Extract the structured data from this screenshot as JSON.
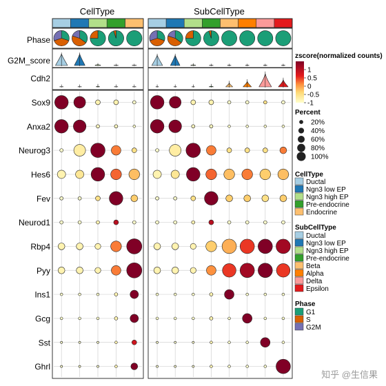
{
  "chart_data": {
    "type": "dotplot",
    "panels": [
      {
        "title": "CellType",
        "columns": [
          "Ductal",
          "Ngn3 low EP",
          "Ngn3 high EP",
          "Pre-endocrine",
          "Endocrine"
        ]
      },
      {
        "title": "SubCellType",
        "columns": [
          "Ductal",
          "Ngn3 low EP",
          "Ngn3 high EP",
          "Pre-endocrine",
          "Beta",
          "Alpha",
          "Delta",
          "Epsilon"
        ]
      }
    ],
    "track_labels": [
      "Phase",
      "G2M_score",
      "Cdh2"
    ],
    "genes": [
      "Sox9",
      "Anxa2",
      "Neurog3",
      "Hes6",
      "Fev",
      "Neurod1",
      "Rbp4",
      "Pyy",
      "Ins1",
      "Gcg",
      "Sst",
      "Ghrl"
    ],
    "dot_panel_1": {
      "percent": [
        [
          80,
          60,
          10,
          10,
          5
        ],
        [
          80,
          70,
          5,
          5,
          3
        ],
        [
          5,
          60,
          90,
          40,
          10
        ],
        [
          30,
          30,
          80,
          50,
          50
        ],
        [
          5,
          5,
          10,
          80,
          20
        ],
        [
          5,
          5,
          5,
          10,
          5
        ],
        [
          20,
          20,
          15,
          50,
          100
        ],
        [
          20,
          20,
          15,
          40,
          100
        ],
        [
          3,
          3,
          3,
          5,
          30
        ],
        [
          3,
          3,
          3,
          5,
          30
        ],
        [
          2,
          2,
          2,
          3,
          10
        ],
        [
          2,
          2,
          2,
          3,
          20
        ]
      ],
      "zscore": [
        [
          1.5,
          1.5,
          -0.8,
          -0.8,
          -1
        ],
        [
          1.5,
          1.5,
          -0.9,
          -0.9,
          -1
        ],
        [
          -1,
          -0.7,
          1.5,
          0.2,
          -0.5
        ],
        [
          -0.8,
          -0.6,
          1.5,
          0.3,
          -0.2
        ],
        [
          -1,
          -1,
          -0.5,
          1.5,
          -0.3
        ],
        [
          -1,
          -1,
          -0.8,
          1,
          -1
        ],
        [
          -0.8,
          -0.8,
          -0.8,
          0.2,
          1.5
        ],
        [
          -0.8,
          -0.8,
          -0.8,
          0.2,
          1.5
        ],
        [
          -1,
          -1,
          -1,
          -0.8,
          1.5
        ],
        [
          -1,
          -1,
          -1,
          -0.8,
          1.5
        ],
        [
          -1,
          -1,
          -1,
          -0.8,
          0.8
        ],
        [
          -1,
          -1,
          -1,
          -0.8,
          1.5
        ]
      ]
    },
    "dot_panel_2": {
      "percent": [
        [
          80,
          60,
          10,
          10,
          5,
          5,
          5,
          5
        ],
        [
          80,
          70,
          5,
          5,
          3,
          3,
          3,
          3
        ],
        [
          5,
          60,
          90,
          40,
          10,
          10,
          10,
          20
        ],
        [
          30,
          30,
          80,
          50,
          50,
          50,
          50,
          50
        ],
        [
          5,
          5,
          10,
          80,
          20,
          20,
          20,
          20
        ],
        [
          5,
          5,
          5,
          10,
          5,
          5,
          5,
          5
        ],
        [
          20,
          20,
          15,
          50,
          90,
          90,
          90,
          90
        ],
        [
          20,
          20,
          15,
          40,
          80,
          90,
          90,
          80
        ],
        [
          3,
          3,
          3,
          5,
          40,
          3,
          3,
          3
        ],
        [
          3,
          3,
          3,
          5,
          3,
          40,
          3,
          3
        ],
        [
          2,
          2,
          2,
          3,
          3,
          3,
          40,
          3
        ],
        [
          2,
          2,
          2,
          3,
          3,
          3,
          3,
          90
        ]
      ],
      "zscore": [
        [
          1.5,
          1.5,
          -0.8,
          -0.8,
          -1,
          -1,
          -0.5,
          -1
        ],
        [
          1.5,
          1.5,
          -0.9,
          -0.9,
          -1,
          -1,
          -1,
          -1
        ],
        [
          -1,
          -0.7,
          1.5,
          0.2,
          -0.5,
          -0.5,
          -0.5,
          0.2
        ],
        [
          -0.8,
          -0.6,
          1.5,
          0.3,
          -0.2,
          0.2,
          -0.3,
          -0.2
        ],
        [
          -1,
          -1,
          -0.5,
          1.5,
          -0.3,
          -0.3,
          -0.5,
          -0.3
        ],
        [
          -1,
          -1,
          -0.8,
          1,
          -1,
          -1,
          -1,
          -1
        ],
        [
          -0.8,
          -0.8,
          -0.8,
          -0.3,
          -0.1,
          0.5,
          1.5,
          1.2
        ],
        [
          -0.8,
          -0.8,
          -0.8,
          0.1,
          0.5,
          1.2,
          1.5,
          0.5
        ],
        [
          -1,
          -1,
          -1,
          -0.8,
          1.5,
          -1,
          -1,
          -1
        ],
        [
          -1,
          -1,
          -1,
          -0.8,
          -1,
          1.5,
          -1,
          -1
        ],
        [
          -1,
          -1,
          -1,
          -0.8,
          -1,
          -1,
          1.5,
          -1
        ],
        [
          -1,
          -1,
          -1,
          -0.8,
          -1,
          -1,
          -1,
          1.5
        ]
      ]
    },
    "phase_fractions_panel_1": [
      {
        "G1": 0.3,
        "S": 0.4,
        "G2M": 0.3
      },
      {
        "G1": 0.35,
        "S": 0.45,
        "G2M": 0.2
      },
      {
        "G1": 0.75,
        "S": 0.25,
        "G2M": 0
      },
      {
        "G1": 0.95,
        "S": 0.05,
        "G2M": 0
      },
      {
        "G1": 1,
        "S": 0,
        "G2M": 0
      }
    ],
    "phase_fractions_panel_2": [
      {
        "G1": 0.3,
        "S": 0.4,
        "G2M": 0.3
      },
      {
        "G1": 0.35,
        "S": 0.45,
        "G2M": 0.2
      },
      {
        "G1": 0.75,
        "S": 0.25,
        "G2M": 0
      },
      {
        "G1": 0.95,
        "S": 0.05,
        "G2M": 0
      },
      {
        "G1": 1,
        "S": 0,
        "G2M": 0
      },
      {
        "G1": 1,
        "S": 0,
        "G2M": 0
      },
      {
        "G1": 1,
        "S": 0,
        "G2M": 0
      },
      {
        "G1": 1,
        "S": 0,
        "G2M": 0
      }
    ],
    "g2m_violins_panel_1": [
      {
        "spread": 0.35,
        "width": 0.85,
        "color": "#a6cee3"
      },
      {
        "spread": 0.35,
        "width": 0.75,
        "color": "#1f78b4"
      },
      {
        "spread": 0.05,
        "width": 0.4,
        "color": "#b2df8a"
      },
      {
        "spread": 0.0,
        "width": 0.3,
        "color": "#33a02c"
      },
      {
        "spread": 0.0,
        "width": 0.3,
        "color": "#fdbf6f"
      }
    ],
    "cdh2_violins_panel_2": [
      {
        "spread": 0.0,
        "width": 0.2
      },
      {
        "spread": 0.0,
        "width": 0.2
      },
      {
        "spread": 0.0,
        "width": 0.2
      },
      {
        "spread": 0.05,
        "width": 0.3
      },
      {
        "spread": 0.15,
        "width": 0.5
      },
      {
        "spread": 0.2,
        "width": 0.6
      },
      {
        "spread": 0.45,
        "width": 0.9
      },
      {
        "spread": 0.25,
        "width": 0.7
      }
    ],
    "zscore_scale": {
      "min": -1,
      "max": 1.5,
      "ticks": [
        1,
        0.5,
        0,
        -0.5,
        -1
      ]
    },
    "legend": {
      "zscore_title": "zscore(normalized counts)",
      "zscore_tick_labels": [
        "1",
        "0.5",
        "0",
        "-0.5",
        "-1"
      ],
      "percent_title": "Percent",
      "percent_levels": [
        20,
        40,
        60,
        80,
        100
      ],
      "percent_labels": [
        "20%",
        "40%",
        "60%",
        "80%",
        "100%"
      ],
      "celltype_title": "CellType",
      "celltype_items": [
        {
          "label": "Ductal",
          "color": "#a6cee3"
        },
        {
          "label": "Ngn3 low EP",
          "color": "#1f78b4"
        },
        {
          "label": "Ngn3 high EP",
          "color": "#b2df8a"
        },
        {
          "label": "Pre-endocrine",
          "color": "#33a02c"
        },
        {
          "label": "Endocrine",
          "color": "#fdbf6f"
        }
      ],
      "subcelltype_title": "SubCellType",
      "subcelltype_items": [
        {
          "label": "Ductal",
          "color": "#a6cee3"
        },
        {
          "label": "Ngn3 low EP",
          "color": "#1f78b4"
        },
        {
          "label": "Ngn3 high EP",
          "color": "#b2df8a"
        },
        {
          "label": "Pre-endocrine",
          "color": "#33a02c"
        },
        {
          "label": "Beta",
          "color": "#fdbf6f"
        },
        {
          "label": "Alpha",
          "color": "#ff7f00"
        },
        {
          "label": "Delta",
          "color": "#fb9a99"
        },
        {
          "label": "Epsilon",
          "color": "#e31a1c"
        }
      ],
      "phase_title": "Phase",
      "phase_items": [
        {
          "label": "G1",
          "color": "#1b9e77"
        },
        {
          "label": "S",
          "color": "#d95f02"
        },
        {
          "label": "G2M",
          "color": "#7570b3"
        }
      ]
    }
  },
  "watermark": "知乎 @生信果"
}
